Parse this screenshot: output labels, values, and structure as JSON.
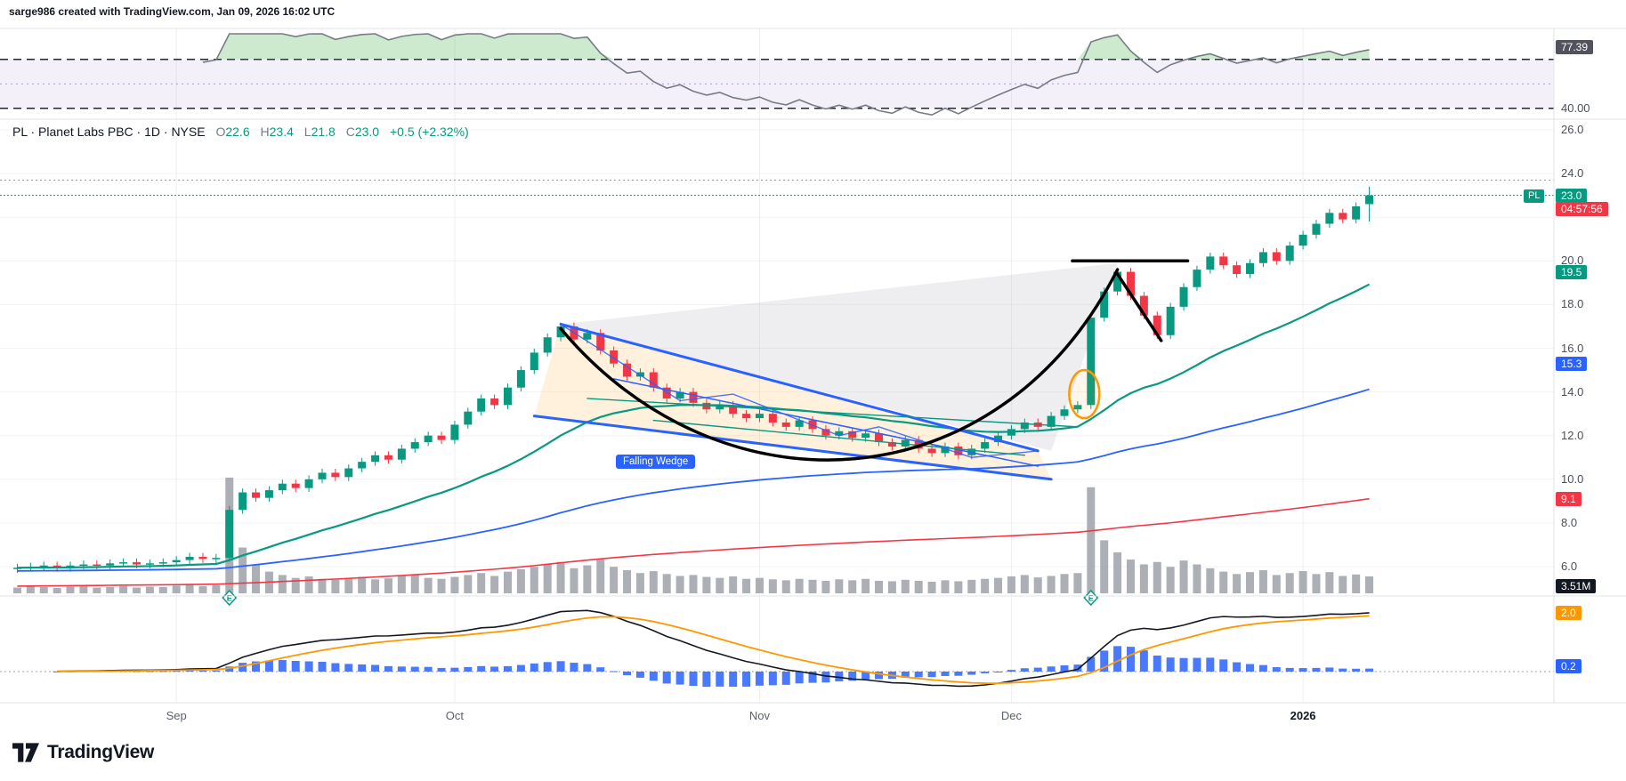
{
  "attribution": "sarge986 created with TradingView.com, Jan 09, 2026 16:02 UTC",
  "footer": {
    "brand": "TradingView"
  },
  "symbol_info": {
    "title": "PL · Planet Labs PBC · 1D · NYSE",
    "o_label": "O",
    "o_value": "22.6",
    "h_label": "H",
    "h_value": "23.4",
    "l_label": "L",
    "l_value": "21.8",
    "c_label": "C",
    "c_value": "23.0",
    "change": "+0.5 (+2.32%)"
  },
  "price_scale": {
    "symbol_chip": "PL",
    "price_badge": "23.0",
    "countdown_badge": "04:57:56",
    "ma_fast_badge": "19.5",
    "ma_mid_badge": "15.3",
    "ma_slow_badge": "9.1",
    "volume_badge": "3.51M",
    "rsi_badge": "77.39",
    "rsi_level_label": "40.00",
    "macd_signal_badge": "2.0",
    "macd_hist_badge": "0.2"
  },
  "colors": {
    "up": "#089981",
    "down": "#f23645",
    "ma_fast": "#089981",
    "ma_mid": "#2962ff",
    "ma_slow": "#f23645",
    "volume": "#9598a1",
    "macd_line": "#131722",
    "signal_line": "#ff9800",
    "histogram": "#2962ff",
    "rsi_line": "#787b86",
    "annotation_blue": "#2962ff",
    "annotation_black": "#000000",
    "annotation_orange": "#ff9800"
  },
  "chart_data": {
    "type": "candlestick",
    "title": "PL Planet Labs PBC daily candlestick chart with RSI, volume, MACD and falling wedge breakout",
    "price_axis_ticks": [
      26,
      24,
      20,
      18,
      16,
      14,
      12,
      10,
      8,
      6
    ],
    "x_axis_labels": [
      {
        "label": "Sep",
        "index": 12,
        "is_year": false
      },
      {
        "label": "Oct",
        "index": 33,
        "is_year": false
      },
      {
        "label": "Nov",
        "index": 56,
        "is_year": false
      },
      {
        "label": "Dec",
        "index": 75,
        "is_year": false
      },
      {
        "label": "2026",
        "index": 97,
        "is_year": true
      }
    ],
    "closes": [
      5.95,
      6.0,
      6.05,
      5.95,
      6.05,
      6.1,
      6.05,
      6.15,
      6.2,
      6.1,
      6.15,
      6.2,
      6.3,
      6.45,
      6.35,
      6.4,
      8.6,
      9.4,
      9.15,
      9.5,
      9.8,
      9.6,
      10.0,
      10.3,
      10.1,
      10.5,
      10.8,
      11.1,
      10.9,
      11.4,
      11.7,
      12.0,
      11.8,
      12.5,
      13.1,
      13.7,
      13.4,
      14.2,
      15.0,
      15.8,
      16.5,
      17.0,
      16.4,
      16.7,
      15.9,
      15.3,
      14.7,
      14.9,
      14.2,
      13.7,
      14.0,
      13.5,
      13.2,
      13.4,
      13.0,
      12.8,
      13.0,
      12.6,
      12.4,
      12.7,
      12.3,
      12.0,
      12.2,
      11.9,
      12.1,
      11.7,
      11.5,
      11.8,
      11.4,
      11.2,
      11.5,
      11.1,
      11.4,
      11.7,
      12.0,
      12.3,
      12.6,
      12.4,
      12.9,
      13.2,
      13.4,
      17.4,
      18.6,
      19.5,
      18.4,
      17.5,
      16.6,
      17.9,
      18.8,
      19.6,
      20.2,
      19.8,
      19.4,
      19.9,
      20.4,
      20.0,
      20.7,
      21.2,
      21.7,
      22.2,
      21.9,
      22.5,
      23.0
    ],
    "volumes_millions": [
      1.2,
      1.5,
      1.3,
      1.1,
      1.4,
      1.6,
      1.2,
      1.3,
      1.5,
      1.2,
      1.4,
      1.3,
      1.6,
      1.8,
      1.5,
      1.7,
      24.0,
      9.5,
      6.0,
      4.5,
      3.8,
      3.2,
      3.5,
      3.0,
      2.8,
      3.2,
      3.4,
      2.9,
      3.1,
      3.6,
      3.8,
      3.2,
      3.0,
      3.4,
      3.8,
      4.2,
      3.6,
      4.5,
      5.0,
      5.5,
      6.0,
      6.5,
      5.2,
      5.8,
      7.0,
      5.5,
      4.8,
      4.2,
      4.6,
      4.0,
      3.6,
      3.8,
      3.4,
      3.2,
      3.5,
      3.0,
      3.2,
      2.9,
      2.7,
      3.0,
      2.8,
      2.6,
      2.9,
      2.7,
      3.0,
      2.6,
      2.5,
      2.8,
      2.6,
      2.4,
      2.7,
      2.5,
      2.8,
      3.0,
      3.2,
      3.5,
      3.8,
      3.3,
      3.6,
      4.0,
      4.2,
      22.0,
      11.0,
      8.5,
      7.0,
      6.0,
      6.5,
      5.5,
      6.8,
      6.0,
      5.2,
      4.5,
      4.0,
      4.4,
      4.8,
      3.8,
      4.2,
      4.6,
      4.0,
      4.4,
      3.6,
      3.9,
      3.51
    ],
    "last_candle": {
      "open": 22.6,
      "high": 23.4,
      "low": 21.8,
      "close": 23.0
    },
    "current_price": 23.0,
    "session_high_line": 23.7,
    "volume_last_label": "3.51M",
    "earnings_indices": [
      16,
      81
    ],
    "earnings_label": "E",
    "indicators": {
      "rsi": {
        "period": 14,
        "upper_band": 70,
        "lower_band": 40,
        "last_value": 77.39
      },
      "macd": {
        "fast": 12,
        "slow": 26,
        "signal": 9,
        "last_signal": 2.0,
        "last_histogram": 0.2
      },
      "moving_averages": [
        {
          "name": "ema-fast",
          "last_value": 19.5
        },
        {
          "name": "ema-mid",
          "last_value": 15.3
        },
        {
          "name": "ema-slow",
          "last_value": 9.1
        }
      ]
    },
    "annotations": {
      "falling_wedge_label": "Falling Wedge",
      "wedge_upper": [
        [
          41,
          17.1
        ],
        [
          77,
          11.3
        ]
      ],
      "wedge_lower": [
        [
          39,
          12.9
        ],
        [
          78,
          10.0
        ]
      ],
      "wedge_median": [
        [
          45,
          14.6
        ],
        [
          77,
          10.6
        ]
      ],
      "wedge_zigzag": [
        [
          41,
          17.1
        ],
        [
          50,
          13.6
        ],
        [
          54,
          13.9
        ],
        [
          62,
          12.0
        ],
        [
          65,
          12.4
        ],
        [
          72,
          11.0
        ],
        [
          77,
          11.3
        ]
      ],
      "teal_lines": [
        [
          [
            43,
            13.7
          ],
          [
            80,
            12.4
          ]
        ],
        [
          [
            48,
            12.7
          ],
          [
            76,
            11.1
          ]
        ]
      ],
      "gray_triangle": [
        [
          41,
          17.1
        ],
        [
          83,
          19.9
        ],
        [
          78,
          11.3
        ]
      ],
      "cup_curve": {
        "p0": [
          41,
          16.9
        ],
        "c1": [
          53,
          8.2
        ],
        "c2": [
          74,
          8.8
        ],
        "p1": [
          83,
          19.6
        ]
      },
      "resistance_line": {
        "price": 20.0,
        "from_index": 79.6,
        "to_index": 88.3
      },
      "handle_line": [
        [
          83,
          19.4
        ],
        [
          86.3,
          16.35
        ]
      ],
      "highlight_ellipse": {
        "index": 80.5,
        "price": 13.9
      }
    }
  }
}
